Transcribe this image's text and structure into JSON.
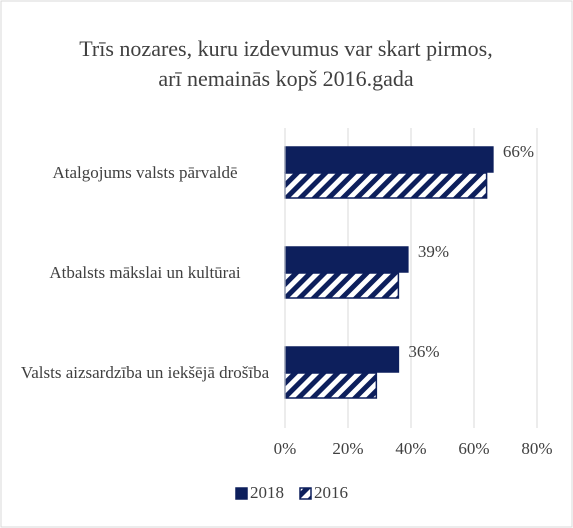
{
  "chart_data": {
    "type": "barh",
    "title": "Trīs nozares, kuru izdevumus var skart pirmos, arī nemainās kopš 2016.gada",
    "categories": [
      "Atalgojums valsts pārvaldē",
      "Atbalsts mākslai un kultūrai",
      "Valsts aizsardzība un iekšējā drošība"
    ],
    "series": [
      {
        "name": "2018",
        "color": "#0d1f5c",
        "pattern": "solid",
        "values": [
          66,
          39,
          36
        ],
        "value_labels": [
          "66%",
          "39%",
          "36%"
        ]
      },
      {
        "name": "2016",
        "color": "#0d1f5c",
        "pattern": "hatch",
        "values": [
          64,
          36,
          29
        ]
      }
    ],
    "xlim": [
      0,
      80
    ],
    "xticks": [
      {
        "value": 0,
        "label": "0%"
      },
      {
        "value": 20,
        "label": "20%"
      },
      {
        "value": 40,
        "label": "40%"
      },
      {
        "value": 60,
        "label": "60%"
      },
      {
        "value": 80,
        "label": "80%"
      }
    ],
    "grid": true,
    "legend": "bottom"
  }
}
